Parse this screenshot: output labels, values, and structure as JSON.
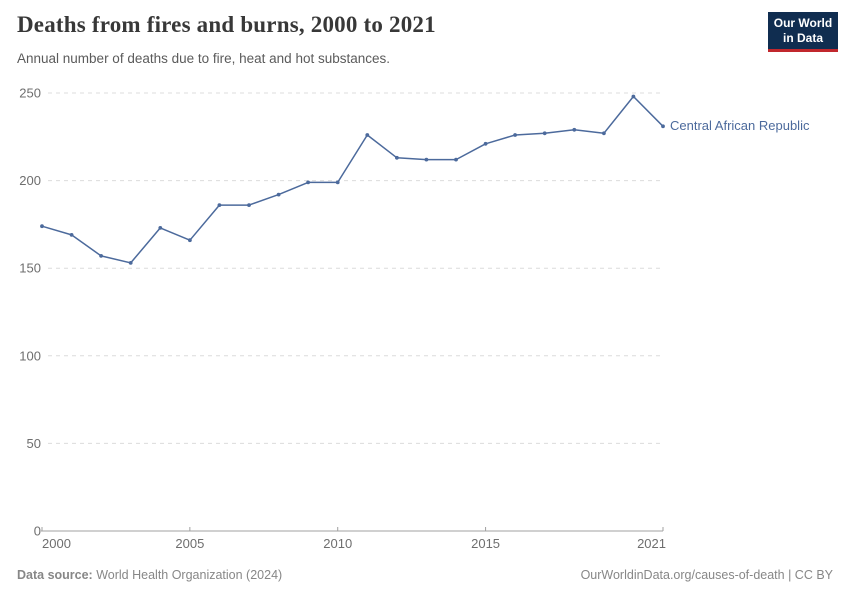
{
  "header": {
    "title": "Deaths from fires and burns, 2000 to 2021",
    "subtitle": "Annual number of deaths due to fire, heat and hot substances.",
    "logo": {
      "line1": "Our World",
      "line2": "in Data",
      "bg_color": "#102d50",
      "bar_color": "#c1272d"
    }
  },
  "chart_data": {
    "type": "line",
    "title": "Deaths from fires and burns, 2000 to 2021",
    "subtitle": "Annual number of deaths due to fire, heat and hot substances.",
    "xlabel": "",
    "ylabel": "",
    "x": [
      2000,
      2001,
      2002,
      2003,
      2004,
      2005,
      2006,
      2007,
      2008,
      2009,
      2010,
      2011,
      2012,
      2013,
      2014,
      2015,
      2016,
      2017,
      2018,
      2019,
      2020,
      2021
    ],
    "series": [
      {
        "name": "Central African Republic",
        "color": "#4C6A9C",
        "values": [
          174,
          169,
          157,
          153,
          173,
          166,
          186,
          186,
          192,
          199,
          199,
          226,
          213,
          212,
          212,
          221,
          226,
          227,
          229,
          227,
          248,
          231
        ]
      }
    ],
    "xticks": [
      2000,
      2005,
      2010,
      2015,
      2021
    ],
    "yticks": [
      0,
      50,
      100,
      150,
      200,
      250
    ],
    "xlim": [
      2000,
      2021
    ],
    "ylim": [
      0,
      250
    ],
    "grid": "horizontal-dashed",
    "legend_position": "end-of-line-label",
    "gridline_color": "#dcdcdc",
    "axis_color": "#a0a0a0",
    "tick_label_color": "#6e6e6e"
  },
  "footer": {
    "data_source_label": "Data source:",
    "data_source_value": "World Health Organization (2024)",
    "credit": "OurWorldinData.org/causes-of-death | CC BY"
  }
}
